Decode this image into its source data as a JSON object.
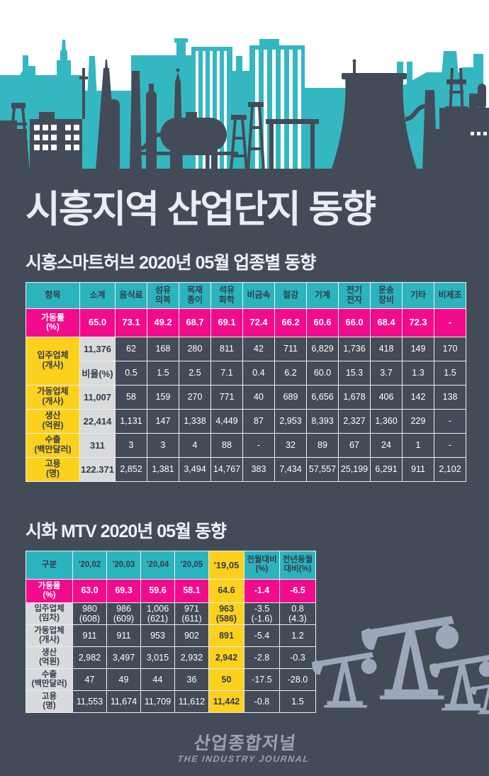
{
  "page": {
    "title": "시흥지역 산업단지 동향"
  },
  "colors": {
    "background": "#444b58",
    "skyline_teal": "#35b7c1",
    "table_header_teal": "#2cb4be",
    "pink": "#f20c8b",
    "yellow": "#fcd11d",
    "light_gray_cell": "#d9dadb",
    "dark_text": "#323b4c",
    "white_text": "#ffffff",
    "logo_gray": "#99a2ae",
    "pump_silhouette_gray": "#9ba8bb"
  },
  "illustrations": {
    "top": "industrial-skyline-silhouette",
    "bottom_right": "oil-pump-jacks-silhouette"
  },
  "section1": {
    "title": "시흥스마트허브 2020년 05월 업종별 동향",
    "table": {
      "header": [
        "항목",
        "소계",
        "음식료",
        "섬유\n의복",
        "목재\n종이",
        "석유\n화학",
        "비금속",
        "철강",
        "기계",
        "전기\n전자",
        "운송\n장비",
        "기타",
        "비제조"
      ],
      "rate_row": {
        "label": "가동률\n(%)",
        "values": [
          "65.0",
          "73.1",
          "49.2",
          "68.7",
          "69.1",
          "72.4",
          "66.2",
          "60.6",
          "66.0",
          "68.4",
          "72.3",
          "-"
        ]
      },
      "rows": [
        {
          "label": "입주업체\n(개사)",
          "labelRowspan": 2,
          "sub": "11,376",
          "values": [
            "62",
            "168",
            "280",
            "811",
            "42",
            "711",
            "6,829",
            "1,736",
            "418",
            "149",
            "170"
          ]
        },
        {
          "sub": "비율(%)",
          "values": [
            "0.5",
            "1.5",
            "2.5",
            "7.1",
            "0.4",
            "6.2",
            "60.0",
            "15.3",
            "3.7",
            "1.3",
            "1.5"
          ]
        },
        {
          "label": "가동업체\n(개사)",
          "sub": "11,007",
          "values": [
            "58",
            "159",
            "270",
            "771",
            "40",
            "689",
            "6,656",
            "1,678",
            "406",
            "142",
            "138"
          ]
        },
        {
          "label": "생산\n(억원)",
          "sub": "22,414",
          "values": [
            "1,131",
            "147",
            "1,338",
            "4,449",
            "87",
            "2,953",
            "8,393",
            "2,327",
            "1,360",
            "229",
            "-"
          ]
        },
        {
          "label": "수출\n(백만달러)",
          "sub": "311",
          "values": [
            "3",
            "3",
            "4",
            "88",
            "-",
            "32",
            "89",
            "67",
            "24",
            "1",
            "-"
          ]
        },
        {
          "label": "고용\n(명)",
          "sub": "122.371",
          "values": [
            "2,852",
            "1,381",
            "3,494",
            "14,767",
            "383",
            "7,434",
            "57,557",
            "25,199",
            "6,291",
            "911",
            "2,102"
          ]
        }
      ]
    }
  },
  "section2": {
    "title": "시화 MTV 2020년 05월 동향",
    "table": {
      "header": [
        "구분",
        "'20,02",
        "'20,03",
        "'20,04",
        "'20,05",
        "'19,05",
        "전월대비\n(%)",
        "전년동월\n대비(%)"
      ],
      "highlight_column": "'19,05",
      "rows": [
        {
          "label": "가동율\n(%)",
          "pink": true,
          "values": [
            "63.0",
            "69.3",
            "59.6",
            "58.1",
            "64.6",
            "-1.4",
            "-6.5"
          ]
        },
        {
          "label": "입주업체\n(임차)",
          "values": [
            "980\n(608)",
            "986\n(609)",
            "1,006\n(621)",
            "971\n(611)",
            "963\n(586)",
            "-3.5\n(-1.6)",
            "0.8\n(4.3)"
          ]
        },
        {
          "label": "가동업체\n(개사)",
          "values": [
            "911",
            "911",
            "953",
            "902",
            "891",
            "-5.4",
            "1.2"
          ]
        },
        {
          "label": "생산\n(억원)",
          "values": [
            "2,982",
            "3,497",
            "3,015",
            "2,932",
            "2,942",
            "-2.8",
            "-0.3"
          ]
        },
        {
          "label": "수출\n(백만달러)",
          "values": [
            "47",
            "49",
            "44",
            "36",
            "50",
            "-17.5",
            "-28.0"
          ]
        },
        {
          "label": "고용\n(명)",
          "values": [
            "11,553",
            "11,674",
            "11,709",
            "11,612",
            "11,442",
            "-0.8",
            "1.5"
          ]
        }
      ]
    }
  },
  "footer": {
    "logo_kr": "산업종합저널",
    "logo_en": "THE INDUSTRY JOURNAL"
  }
}
